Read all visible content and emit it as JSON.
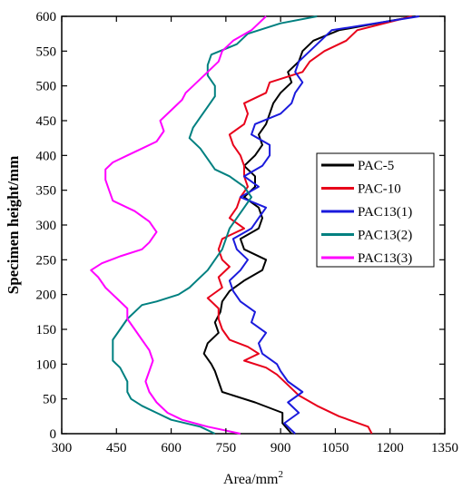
{
  "chart_data": {
    "type": "line",
    "title": "",
    "xlabel": "Area/mm",
    "xlabel_superscript": "2",
    "ylabel": "Specimen height/mm",
    "xlim": [
      300,
      1350
    ],
    "ylim": [
      0,
      600
    ],
    "xticks": [
      300,
      450,
      600,
      750,
      900,
      1050,
      1200,
      1350
    ],
    "yticks": [
      0,
      50,
      100,
      150,
      200,
      250,
      300,
      350,
      400,
      450,
      500,
      550,
      600
    ],
    "grid": false,
    "legend_position": "right-middle",
    "series": [
      {
        "name": "PAC-5",
        "color": "#000000",
        "points": [
          [
            930,
            0
          ],
          [
            905,
            15
          ],
          [
            905,
            30
          ],
          [
            830,
            45
          ],
          [
            740,
            60
          ],
          [
            730,
            75
          ],
          [
            720,
            90
          ],
          [
            710,
            100
          ],
          [
            690,
            115
          ],
          [
            700,
            130
          ],
          [
            730,
            145
          ],
          [
            720,
            160
          ],
          [
            735,
            175
          ],
          [
            740,
            190
          ],
          [
            760,
            205
          ],
          [
            800,
            220
          ],
          [
            850,
            235
          ],
          [
            860,
            250
          ],
          [
            800,
            265
          ],
          [
            790,
            280
          ],
          [
            840,
            295
          ],
          [
            850,
            310
          ],
          [
            840,
            325
          ],
          [
            800,
            340
          ],
          [
            830,
            355
          ],
          [
            830,
            370
          ],
          [
            800,
            385
          ],
          [
            830,
            400
          ],
          [
            850,
            415
          ],
          [
            840,
            430
          ],
          [
            860,
            445
          ],
          [
            870,
            460
          ],
          [
            880,
            475
          ],
          [
            900,
            490
          ],
          [
            930,
            505
          ],
          [
            920,
            520
          ],
          [
            950,
            535
          ],
          [
            960,
            550
          ],
          [
            990,
            565
          ],
          [
            1060,
            580
          ],
          [
            1270,
            600
          ]
        ]
      },
      {
        "name": "PAC-10",
        "color": "#e8001a",
        "points": [
          [
            1150,
            0
          ],
          [
            1140,
            10
          ],
          [
            1060,
            25
          ],
          [
            1000,
            40
          ],
          [
            950,
            55
          ],
          [
            920,
            70
          ],
          [
            890,
            85
          ],
          [
            860,
            95
          ],
          [
            800,
            105
          ],
          [
            840,
            115
          ],
          [
            810,
            125
          ],
          [
            760,
            135
          ],
          [
            740,
            150
          ],
          [
            730,
            165
          ],
          [
            730,
            180
          ],
          [
            700,
            195
          ],
          [
            740,
            210
          ],
          [
            730,
            225
          ],
          [
            760,
            240
          ],
          [
            740,
            250
          ],
          [
            730,
            265
          ],
          [
            740,
            280
          ],
          [
            800,
            295
          ],
          [
            760,
            310
          ],
          [
            780,
            325
          ],
          [
            790,
            340
          ],
          [
            810,
            355
          ],
          [
            800,
            370
          ],
          [
            800,
            385
          ],
          [
            790,
            400
          ],
          [
            770,
            415
          ],
          [
            760,
            430
          ],
          [
            800,
            445
          ],
          [
            810,
            460
          ],
          [
            800,
            475
          ],
          [
            860,
            490
          ],
          [
            870,
            505
          ],
          [
            960,
            520
          ],
          [
            980,
            535
          ],
          [
            1020,
            550
          ],
          [
            1080,
            565
          ],
          [
            1110,
            580
          ],
          [
            1260,
            600
          ]
        ]
      },
      {
        "name": "PAC13(1)",
        "color": "#1a1adc",
        "points": [
          [
            940,
            0
          ],
          [
            910,
            15
          ],
          [
            950,
            30
          ],
          [
            920,
            45
          ],
          [
            960,
            60
          ],
          [
            920,
            75
          ],
          [
            900,
            90
          ],
          [
            890,
            100
          ],
          [
            850,
            115
          ],
          [
            840,
            130
          ],
          [
            860,
            145
          ],
          [
            820,
            160
          ],
          [
            830,
            175
          ],
          [
            790,
            190
          ],
          [
            770,
            205
          ],
          [
            760,
            220
          ],
          [
            790,
            235
          ],
          [
            810,
            250
          ],
          [
            780,
            265
          ],
          [
            770,
            280
          ],
          [
            820,
            295
          ],
          [
            840,
            310
          ],
          [
            860,
            325
          ],
          [
            790,
            340
          ],
          [
            840,
            355
          ],
          [
            800,
            370
          ],
          [
            850,
            385
          ],
          [
            870,
            400
          ],
          [
            870,
            415
          ],
          [
            820,
            430
          ],
          [
            830,
            445
          ],
          [
            900,
            460
          ],
          [
            930,
            475
          ],
          [
            940,
            490
          ],
          [
            960,
            505
          ],
          [
            940,
            520
          ],
          [
            950,
            535
          ],
          [
            980,
            550
          ],
          [
            1010,
            565
          ],
          [
            1040,
            580
          ],
          [
            1280,
            600
          ]
        ]
      },
      {
        "name": "PAC13(2)",
        "color": "#008080",
        "points": [
          [
            720,
            0
          ],
          [
            680,
            10
          ],
          [
            600,
            20
          ],
          [
            560,
            30
          ],
          [
            520,
            40
          ],
          [
            490,
            50
          ],
          [
            480,
            60
          ],
          [
            480,
            75
          ],
          [
            470,
            85
          ],
          [
            460,
            95
          ],
          [
            440,
            105
          ],
          [
            440,
            120
          ],
          [
            440,
            135
          ],
          [
            460,
            150
          ],
          [
            480,
            165
          ],
          [
            500,
            175
          ],
          [
            520,
            185
          ],
          [
            560,
            190
          ],
          [
            620,
            200
          ],
          [
            650,
            210
          ],
          [
            670,
            220
          ],
          [
            700,
            235
          ],
          [
            720,
            250
          ],
          [
            740,
            265
          ],
          [
            750,
            280
          ],
          [
            760,
            295
          ],
          [
            780,
            310
          ],
          [
            800,
            325
          ],
          [
            820,
            340
          ],
          [
            800,
            355
          ],
          [
            760,
            370
          ],
          [
            720,
            380
          ],
          [
            700,
            395
          ],
          [
            680,
            410
          ],
          [
            650,
            425
          ],
          [
            660,
            440
          ],
          [
            680,
            455
          ],
          [
            700,
            470
          ],
          [
            720,
            485
          ],
          [
            720,
            500
          ],
          [
            700,
            515
          ],
          [
            700,
            530
          ],
          [
            710,
            545
          ],
          [
            780,
            560
          ],
          [
            810,
            575
          ],
          [
            900,
            590
          ],
          [
            1000,
            600
          ]
        ]
      },
      {
        "name": "PAC13(3)",
        "color": "#ff00ff",
        "points": [
          [
            790,
            0
          ],
          [
            700,
            10
          ],
          [
            630,
            20
          ],
          [
            590,
            30
          ],
          [
            560,
            45
          ],
          [
            540,
            60
          ],
          [
            530,
            75
          ],
          [
            540,
            90
          ],
          [
            550,
            105
          ],
          [
            540,
            120
          ],
          [
            520,
            135
          ],
          [
            500,
            150
          ],
          [
            480,
            165
          ],
          [
            480,
            180
          ],
          [
            450,
            195
          ],
          [
            420,
            210
          ],
          [
            400,
            225
          ],
          [
            380,
            235
          ],
          [
            410,
            245
          ],
          [
            460,
            255
          ],
          [
            520,
            265
          ],
          [
            540,
            275
          ],
          [
            560,
            290
          ],
          [
            540,
            305
          ],
          [
            500,
            320
          ],
          [
            440,
            335
          ],
          [
            430,
            350
          ],
          [
            420,
            365
          ],
          [
            420,
            380
          ],
          [
            440,
            390
          ],
          [
            480,
            400
          ],
          [
            520,
            410
          ],
          [
            560,
            420
          ],
          [
            580,
            435
          ],
          [
            570,
            450
          ],
          [
            600,
            465
          ],
          [
            630,
            480
          ],
          [
            640,
            490
          ],
          [
            660,
            500
          ],
          [
            700,
            520
          ],
          [
            730,
            535
          ],
          [
            740,
            550
          ],
          [
            770,
            565
          ],
          [
            820,
            580
          ],
          [
            860,
            600
          ]
        ]
      }
    ]
  }
}
